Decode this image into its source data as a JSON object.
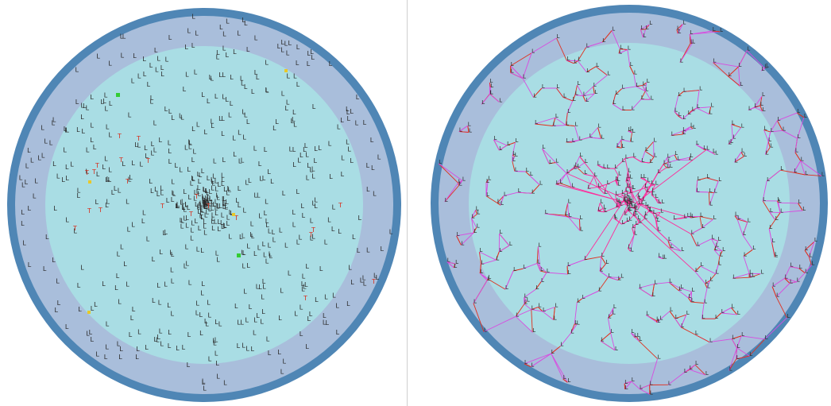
{
  "panels": [
    {
      "name": "nodes-view",
      "node_glyph": "L",
      "special_glyph": "T",
      "colors": {
        "outer_ring": "#4f86b5",
        "middle_zone": "#a9bedb",
        "inner_zone": "#a9dde4",
        "node": "#2a2a2a",
        "special_node": "#d7301f",
        "highlight_green": "#33cc33",
        "highlight_yellow": "#e8c82a"
      }
    },
    {
      "name": "links-view",
      "node_glyph": "L",
      "colors": {
        "outer_ring": "#4f86b5",
        "middle_zone": "#a9bedb",
        "inner_zone": "#a9dde4",
        "node": "#2a2a2a",
        "link_primary": "#e0301e",
        "link_secondary": "#d84ce0",
        "hub_links": "#ff2a9a"
      }
    }
  ]
}
